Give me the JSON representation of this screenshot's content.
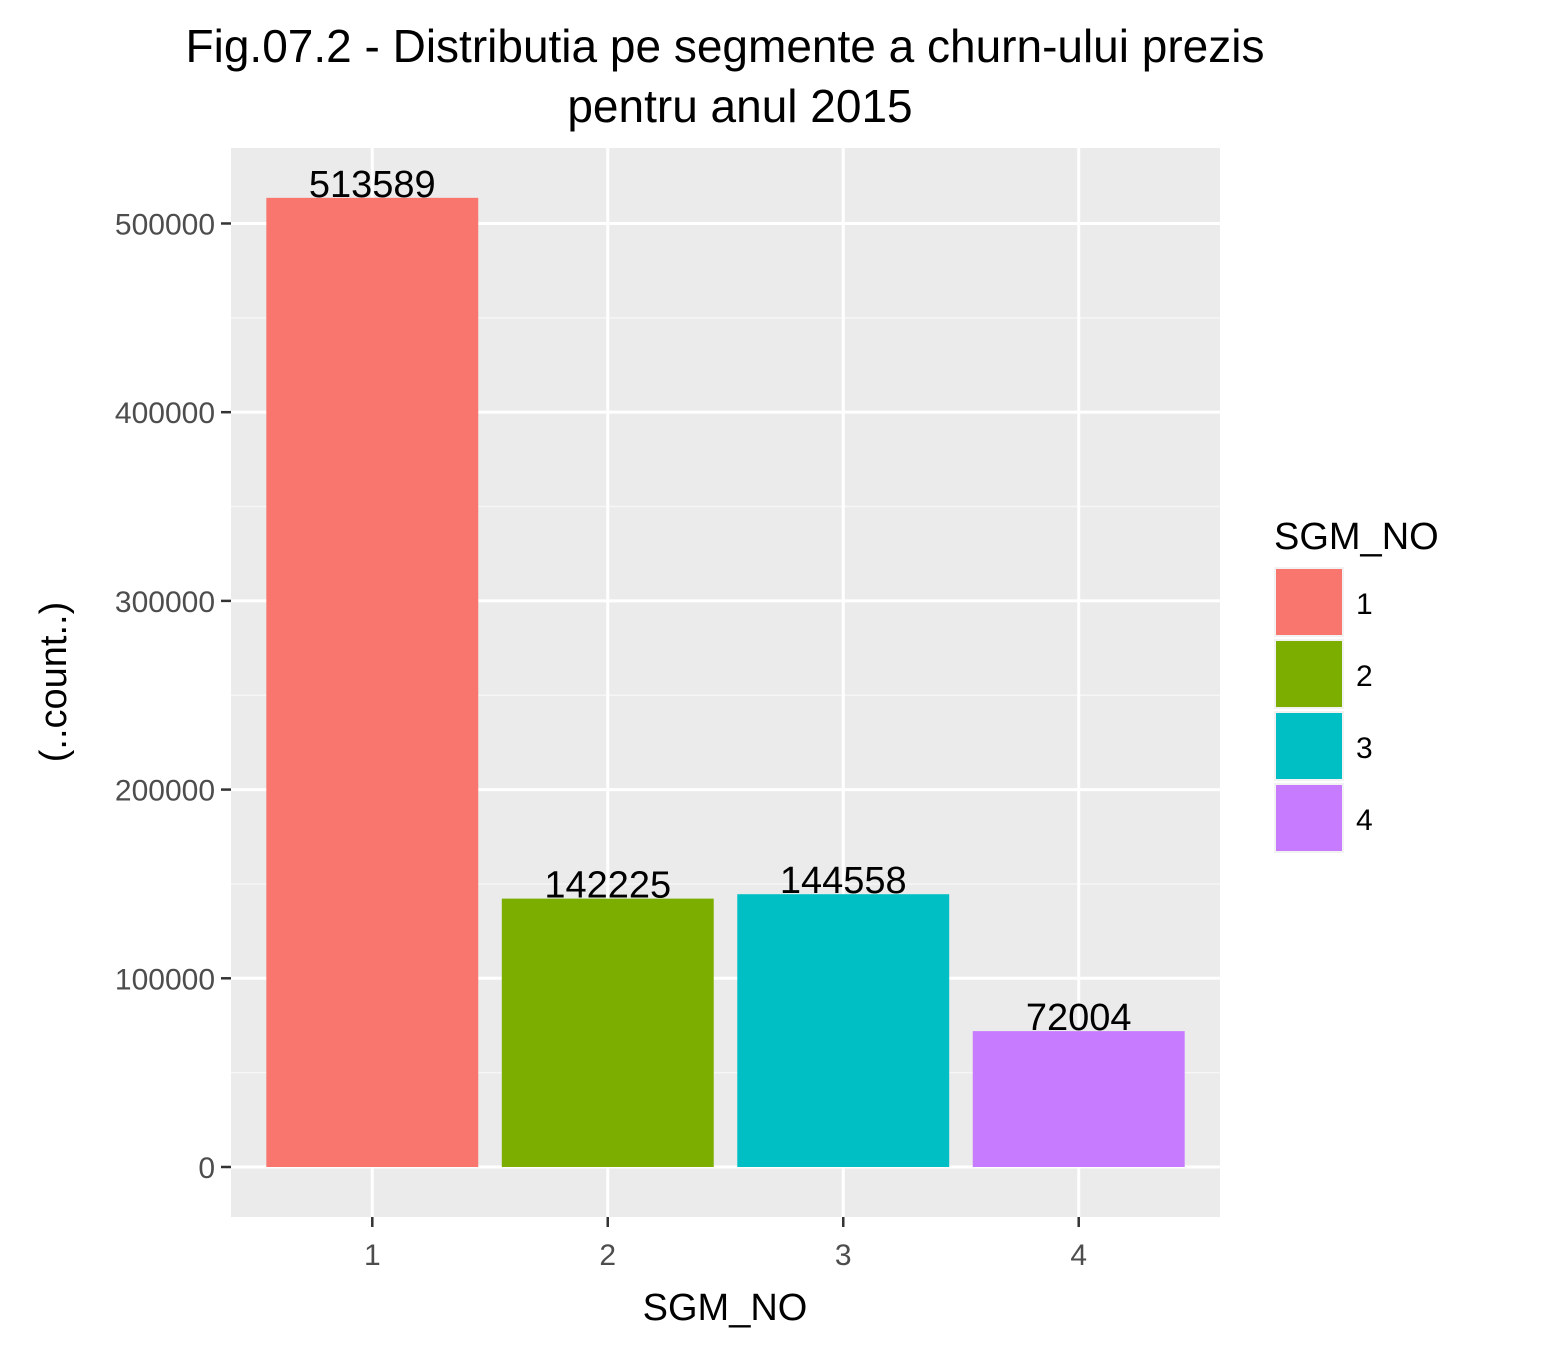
{
  "chart_data": {
    "type": "bar",
    "title": "Fig.07.2 - Distributia pe segmente a churn-ului prezis",
    "subtitle": "pentru anul 2015",
    "xlabel": "SGM_NO",
    "ylabel": "(..count..)",
    "categories": [
      "1",
      "2",
      "3",
      "4"
    ],
    "values": [
      513589,
      142225,
      144558,
      72004
    ],
    "data_labels": [
      "513589",
      "142225",
      "144558",
      "72004"
    ],
    "colors": [
      "#F8766D",
      "#7CAE00",
      "#00BFC4",
      "#C77CFF"
    ],
    "ylim": [
      -26500,
      540000
    ],
    "yticks": [
      0,
      100000,
      200000,
      300000,
      400000,
      500000
    ],
    "ytick_labels": [
      "0",
      "100000",
      "200000",
      "300000",
      "400000",
      "500000"
    ],
    "grid": true,
    "legend": {
      "title": "SGM_NO",
      "position": "right",
      "entries": [
        "1",
        "2",
        "3",
        "4"
      ]
    }
  }
}
